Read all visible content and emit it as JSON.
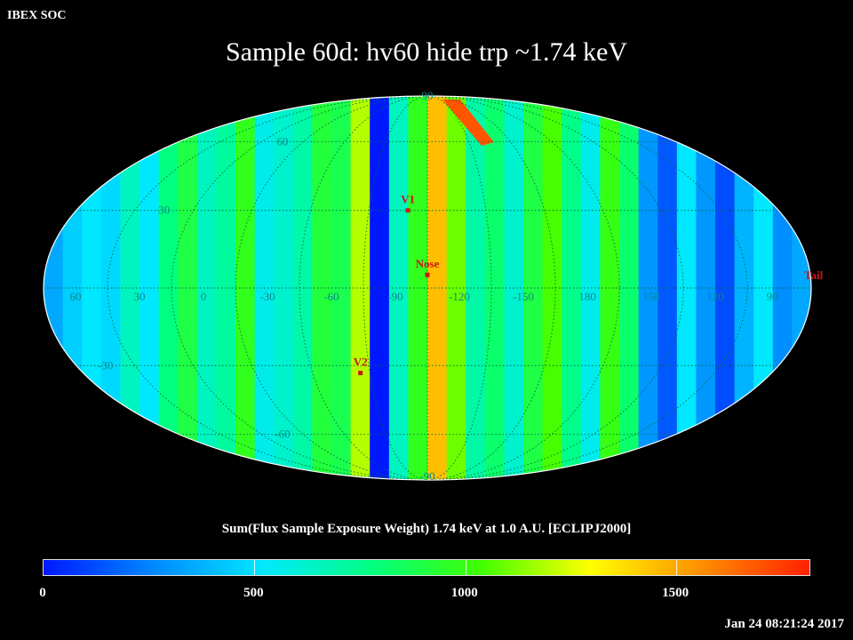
{
  "header": {
    "org": "IBEX SOC",
    "title": "Sample 60d: hv60 hide trp ~1.74 keV"
  },
  "colorbar": {
    "label": "Sum(Flux Sample Exposure Weight)  1.74 keV at 1.0 A.U. [ECLIPJ2000]",
    "ticks": [
      "0",
      "500",
      "1000",
      "1500"
    ],
    "tick_values": [
      0,
      500,
      1000,
      1500
    ],
    "range": [
      0,
      1820
    ],
    "stops": [
      "#0018ff",
      "#0088ff",
      "#00e8ff",
      "#00ff80",
      "#40ff00",
      "#ffff00",
      "#ff9000",
      "#ff2000"
    ]
  },
  "timestamp": "Jan 24 08:21:24 2017",
  "map": {
    "projection": "Mollweide",
    "meridian_labels": [
      "60",
      "30",
      "0",
      "-30",
      "-60",
      "-90",
      "-120",
      "-150",
      "180",
      "150",
      "120",
      "90"
    ],
    "meridian_values": [
      60,
      30,
      0,
      -30,
      -60,
      -90,
      -120,
      -150,
      180,
      150,
      120,
      90
    ],
    "parallel_labels": [
      "90",
      "60",
      "30",
      "-30",
      "-60",
      "-90"
    ],
    "parallel_values": [
      90,
      60,
      30,
      -30,
      -60,
      -90
    ],
    "markers": [
      {
        "name": "V1",
        "lon": -95,
        "lat": 30
      },
      {
        "name": "Nose",
        "lon": -105,
        "lat": 5
      },
      {
        "name": "V2",
        "lon": -70,
        "lat": -33
      },
      {
        "name": "Tail",
        "lon": 90,
        "lat": 0
      }
    ]
  },
  "chart_data": {
    "type": "heatmap",
    "title": "Sample 60d: hv60 hide trp ~1.74 keV",
    "colorbar_label": "Sum(Flux Sample Exposure Weight)  1.74 keV at 1.0 A.U. [ECLIPJ2000]",
    "value_range": [
      0,
      1820
    ],
    "strip_values_left_to_right": [
      350,
      450,
      520,
      480,
      650,
      520,
      780,
      900,
      650,
      720,
      980,
      560,
      620,
      700,
      920,
      880,
      1200,
      0,
      650,
      980,
      1450,
      1100,
      700,
      820,
      620,
      900,
      1050,
      760,
      560,
      1000,
      820,
      300,
      150,
      520,
      300,
      120,
      380,
      520,
      280,
      350
    ],
    "north_pole_hot_spot": 1700
  }
}
